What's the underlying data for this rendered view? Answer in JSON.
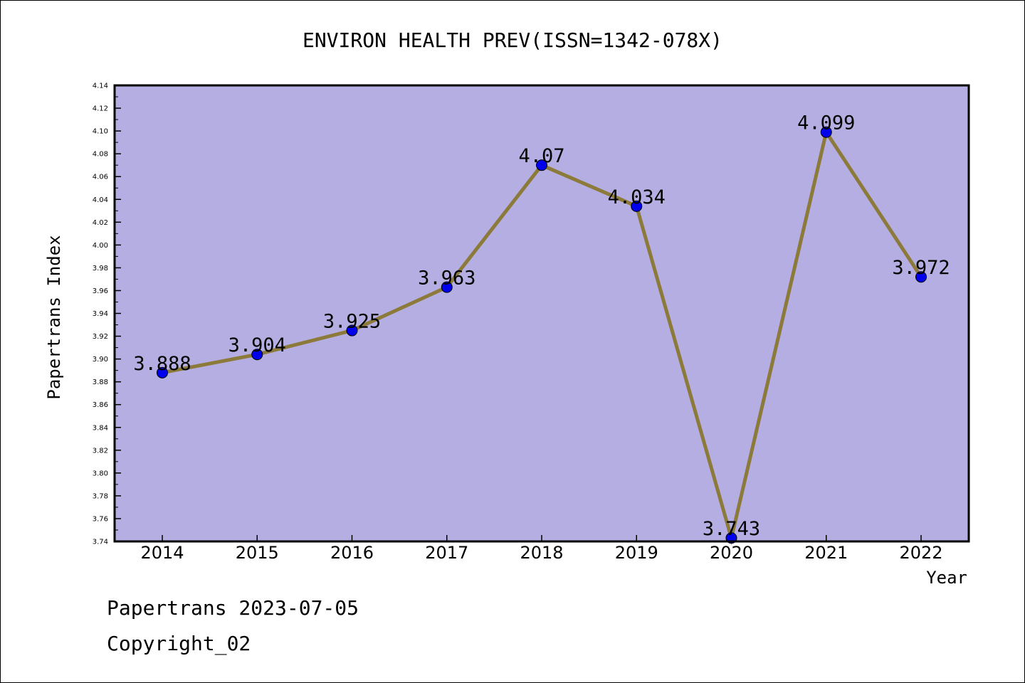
{
  "chart_data": {
    "type": "line",
    "title": "ENVIRON HEALTH PREV(ISSN=1342-078X)",
    "xlabel": "Year",
    "ylabel": "Papertrans Index",
    "x": [
      "2014",
      "2015",
      "2016",
      "2017",
      "2018",
      "2019",
      "2020",
      "2021",
      "2022"
    ],
    "series": [
      {
        "values": [
          3.888,
          3.904,
          3.925,
          3.963,
          4.07,
          4.034,
          3.743,
          4.099,
          3.972
        ],
        "labels": [
          "3.888",
          "3.904",
          "3.925",
          "3.963",
          "4.07",
          "4.034",
          "3.743",
          "4.099",
          "3.972"
        ]
      }
    ],
    "ylim": [
      3.74,
      4.14
    ],
    "yticks": [
      "3.74",
      "3.76",
      "3.78",
      "3.80",
      "3.82",
      "3.84",
      "3.86",
      "3.88",
      "3.90",
      "3.92",
      "3.94",
      "3.96",
      "3.98",
      "4.00",
      "4.02",
      "4.04",
      "4.06",
      "4.08",
      "4.10",
      "4.12",
      "4.14"
    ],
    "grid": false,
    "colors": {
      "plot_background": "#b5aee2",
      "line": "#8b7a3a",
      "marker": "#0000ee"
    }
  },
  "footer": {
    "line1": "Papertrans 2023-07-05",
    "line2": "Copyright_02"
  }
}
